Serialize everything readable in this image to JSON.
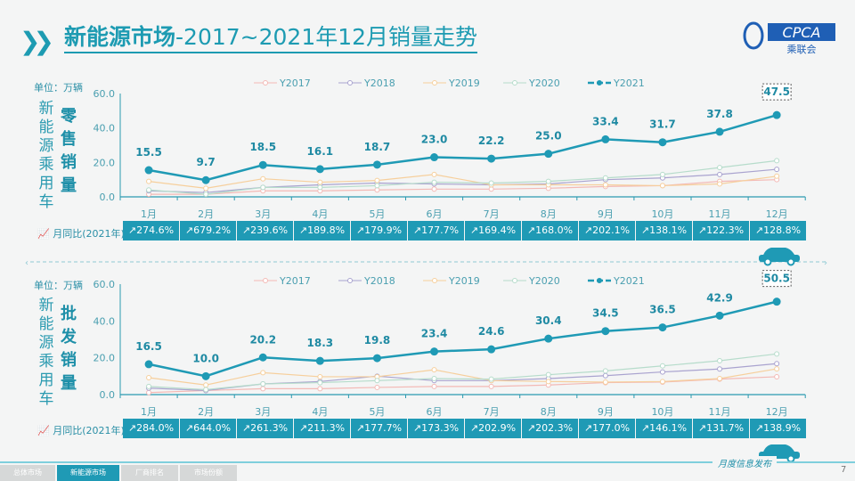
{
  "header": {
    "title_bold": "新能源市场",
    "title_rest": "-2017~2021年12月销量走势",
    "logo_text": "CPCA",
    "logo_sub": "乘联会"
  },
  "unit_label": "单位：万辆",
  "side_label": [
    "新",
    "能",
    "源",
    "乘",
    "用",
    "车"
  ],
  "yoy_label": "月同比(2021年)",
  "colors": {
    "Y2017": "#f3b9b5",
    "Y2018": "#a9a3cf",
    "Y2019": "#f6cf9c",
    "Y2020": "#b6dccb",
    "Y2021": "#1f9ab5"
  },
  "chart_data": [
    {
      "type": "line",
      "bold_label": [
        "零",
        "售",
        "销",
        "量"
      ],
      "ylim": [
        0,
        60
      ],
      "yticks": [
        "0.0",
        "20.0",
        "40.0",
        "60.0"
      ],
      "categories": [
        "1月",
        "2月",
        "3月",
        "4月",
        "5月",
        "6月",
        "7月",
        "8月",
        "9月",
        "10月",
        "11月",
        "12月"
      ],
      "legend_position": "top",
      "series": [
        {
          "name": "Y2017",
          "values": [
            1.5,
            1.5,
            3.5,
            3.5,
            4.0,
            4.5,
            4.5,
            5.0,
            6.0,
            6.5,
            9.0,
            10.0
          ]
        },
        {
          "name": "Y2018",
          "values": [
            3.5,
            2.5,
            5.5,
            7.0,
            8.0,
            7.5,
            7.0,
            7.5,
            10.0,
            11.0,
            13.0,
            16.0
          ]
        },
        {
          "name": "Y2019",
          "values": [
            9.0,
            5.0,
            10.5,
            8.5,
            9.5,
            13.0,
            7.0,
            7.0,
            7.0,
            6.5,
            7.5,
            12.0
          ]
        },
        {
          "name": "Y2020",
          "values": [
            4.0,
            1.5,
            5.5,
            5.5,
            6.5,
            8.5,
            8.0,
            9.0,
            11.0,
            13.0,
            17.0,
            21.0
          ]
        },
        {
          "name": "Y2021",
          "values": [
            15.5,
            9.7,
            18.5,
            16.1,
            18.7,
            23.0,
            22.2,
            25.0,
            33.4,
            31.7,
            37.8,
            47.5
          ],
          "labels": [
            "15.5",
            "9.7",
            "18.5",
            "16.1",
            "18.7",
            "23.0",
            "22.2",
            "25.0",
            "33.4",
            "31.7",
            "37.8",
            "47.5"
          ]
        }
      ],
      "yoy": [
        "274.6%",
        "679.2%",
        "239.6%",
        "189.8%",
        "179.9%",
        "177.7%",
        "169.4%",
        "168.0%",
        "202.1%",
        "138.1%",
        "122.3%",
        "128.8%"
      ]
    },
    {
      "type": "line",
      "bold_label": [
        "批",
        "发",
        "销",
        "量"
      ],
      "ylim": [
        0,
        60
      ],
      "yticks": [
        "0.0",
        "20.0",
        "40.0",
        "60.0"
      ],
      "categories": [
        "1月",
        "2月",
        "3月",
        "4月",
        "5月",
        "6月",
        "7月",
        "8月",
        "9月",
        "10月",
        "11月",
        "12月"
      ],
      "legend_position": "top",
      "series": [
        {
          "name": "Y2017",
          "values": [
            1.1,
            2.2,
            3.2,
            3.2,
            3.9,
            4.4,
            4.4,
            5.2,
            6.5,
            6.8,
            8.4,
            9.7
          ]
        },
        {
          "name": "Y2018",
          "values": [
            3.5,
            2.2,
            5.8,
            7.1,
            10.0,
            7.6,
            7.6,
            8.7,
            10.3,
            12.3,
            13.9,
            16.8
          ]
        },
        {
          "name": "Y2019",
          "values": [
            9.2,
            5.2,
            11.9,
            9.7,
            9.7,
            13.5,
            7.6,
            7.1,
            6.8,
            7.1,
            8.7,
            14.0
          ]
        },
        {
          "name": "Y2020",
          "values": [
            4.4,
            2.7,
            5.8,
            6.5,
            7.6,
            8.7,
            8.4,
            10.8,
            12.9,
            15.6,
            18.4,
            22.1
          ]
        },
        {
          "name": "Y2021",
          "values": [
            16.5,
            10.0,
            20.2,
            18.3,
            19.8,
            23.4,
            24.6,
            30.4,
            34.5,
            36.5,
            42.9,
            50.5
          ],
          "labels": [
            "16.5",
            "10.0",
            "20.2",
            "18.3",
            "19.8",
            "23.4",
            "24.6",
            "30.4",
            "34.5",
            "36.5",
            "42.9",
            "50.5"
          ]
        }
      ],
      "yoy": [
        "284.0%",
        "644.0%",
        "261.3%",
        "211.3%",
        "177.7%",
        "173.3%",
        "202.9%",
        "202.3%",
        "177.0%",
        "146.1%",
        "131.7%",
        "138.9%"
      ]
    }
  ],
  "footer": {
    "tabs": [
      "总体市场",
      "新能源市场",
      "厂商排名",
      "市场份额"
    ],
    "active_tab": 1,
    "monthly_release": "月度信息发布",
    "page": "7"
  }
}
